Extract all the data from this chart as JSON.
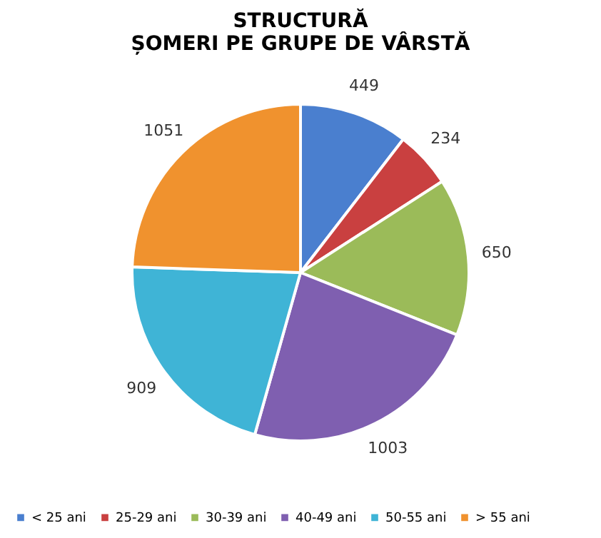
{
  "chart_data": {
    "type": "pie",
    "title": "STRUCTURĂ\nȘOMERI PE GRUPE DE VÂRSTĂ",
    "categories": [
      "< 25 ani",
      "25-29 ani",
      "30-39 ani",
      "40-49 ani",
      "50-55 ani",
      "> 55 ani"
    ],
    "values": [
      449,
      234,
      650,
      1003,
      909,
      1051
    ],
    "colors": [
      "#4a7fcf",
      "#c94040",
      "#9bbb59",
      "#7f5fb0",
      "#3fb4d6",
      "#f0922e"
    ],
    "data_labels": true,
    "legend": "bottom"
  }
}
